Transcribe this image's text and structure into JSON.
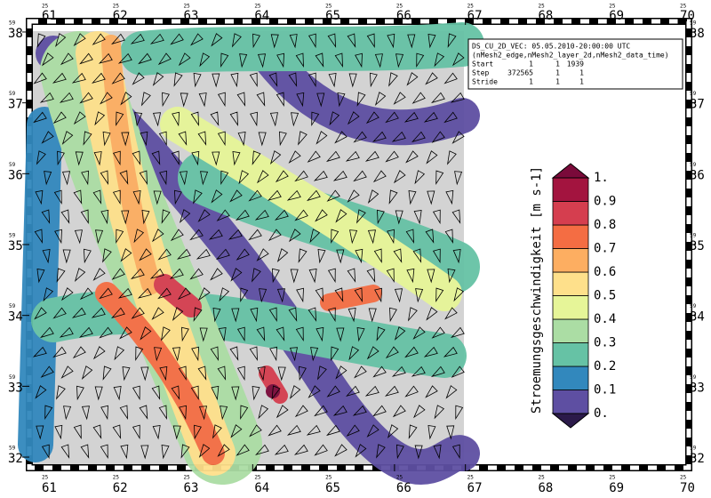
{
  "map": {
    "x_prefix": "25",
    "y_prefix": "59",
    "xticks": [
      61,
      62,
      63,
      64,
      65,
      66,
      67,
      68,
      69,
      70
    ],
    "yticks": [
      32,
      33,
      34,
      35,
      36,
      37,
      38
    ],
    "xlim": [
      60.9,
      70.1
    ],
    "ylim": [
      31.9,
      38.1
    ],
    "info": [
      [
        "DS_CU_2D_VEC: 05.05.2010-20:00:00 UTC"
      ],
      [
        "(nMesh2_edge,nMesh2_layer_2d,nMesh2_data_time)"
      ],
      [
        "Start",
        "1",
        "1",
        "1939"
      ],
      [
        "Step",
        "372565",
        "1",
        "1"
      ],
      [
        "Stride",
        "1",
        "1",
        "1"
      ]
    ],
    "colorbar": {
      "title": "Stroemungsgeschwindigkeit [m s-1]",
      "ticks": [
        {
          "value": 0,
          "label": "0."
        },
        0.1,
        0.2,
        0.3,
        0.4,
        0.5,
        0.6,
        0.7,
        0.8,
        0.9,
        {
          "value": 1,
          "label": "1."
        }
      ],
      "colors": [
        "#5e4fa2",
        "#3288bd",
        "#66c2a5",
        "#abdda4",
        "#e6f598",
        "#fee08b",
        "#fdae61",
        "#f46d43",
        "#d53e4f",
        "#a3143f"
      ],
      "under_color": "#2b1a4a",
      "over_color": "#7a0a3a"
    }
  }
}
